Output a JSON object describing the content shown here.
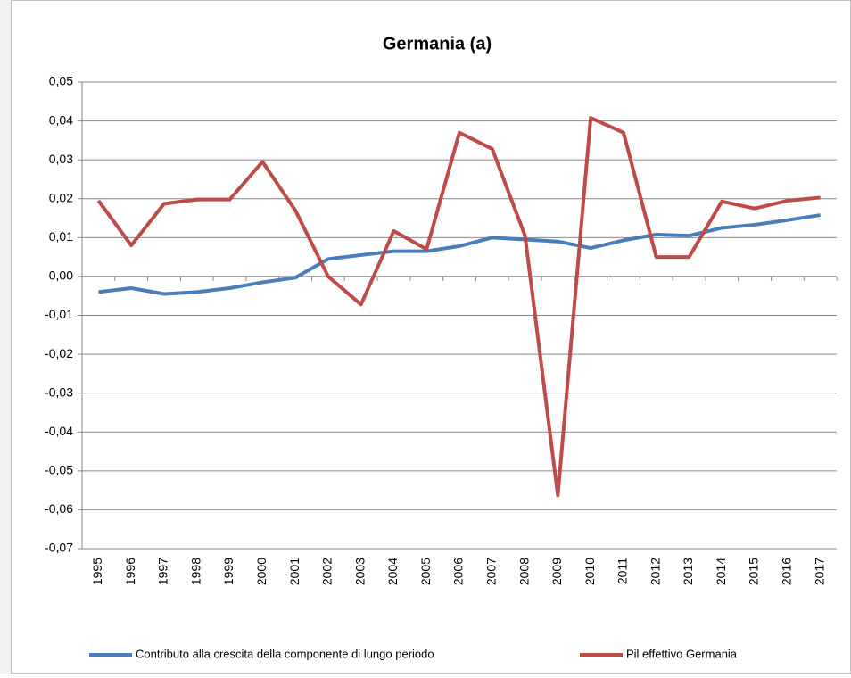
{
  "chart_data": {
    "type": "line",
    "title": "Germania (a)",
    "categories": [
      "1995",
      "1996",
      "1997",
      "1998",
      "1999",
      "2000",
      "2001",
      "2002",
      "2003",
      "2004",
      "2005",
      "2006",
      "2007",
      "2008",
      "2009",
      "2010",
      "2011",
      "2012",
      "2013",
      "2014",
      "2015",
      "2016",
      "2017"
    ],
    "series": [
      {
        "name": "Contributo alla crescita della componente di lungo periodo",
        "color": "#4a7ebb",
        "values": [
          -0.004,
          -0.003,
          -0.0045,
          -0.004,
          -0.003,
          -0.0015,
          -0.0003,
          0.0045,
          0.0055,
          0.0065,
          0.0065,
          0.0078,
          0.01,
          0.0095,
          0.009,
          0.0073,
          0.0093,
          0.0108,
          0.0105,
          0.0125,
          0.0133,
          0.0145,
          0.0158
        ]
      },
      {
        "name": "Pil effettivo Germania",
        "color": "#be4b48",
        "values": [
          0.0195,
          0.008,
          0.0187,
          0.0198,
          0.0198,
          0.0295,
          0.017,
          0.0,
          -0.0072,
          0.0117,
          0.007,
          0.037,
          0.0328,
          0.0105,
          -0.0563,
          0.0408,
          0.037,
          0.005,
          0.005,
          0.0193,
          0.0175,
          0.0195,
          0.0203
        ]
      }
    ],
    "ylim": [
      -0.07,
      0.05
    ],
    "yticks": [
      {
        "value": 0.05,
        "label": "0,05"
      },
      {
        "value": 0.04,
        "label": "0,04"
      },
      {
        "value": 0.03,
        "label": "0,03"
      },
      {
        "value": 0.02,
        "label": "0,02"
      },
      {
        "value": 0.01,
        "label": "0,01"
      },
      {
        "value": 0,
        "label": "0,00"
      },
      {
        "value": -0.01,
        "label": "-0,01"
      },
      {
        "value": -0.02,
        "label": "-0,02"
      },
      {
        "value": -0.03,
        "label": "-0,03"
      },
      {
        "value": -0.04,
        "label": "-0,04"
      },
      {
        "value": -0.05,
        "label": "-0,05"
      },
      {
        "value": -0.06,
        "label": "-0,06"
      },
      {
        "value": -0.07,
        "label": "-0,07"
      }
    ],
    "grid": true,
    "legend": "bottom"
  }
}
